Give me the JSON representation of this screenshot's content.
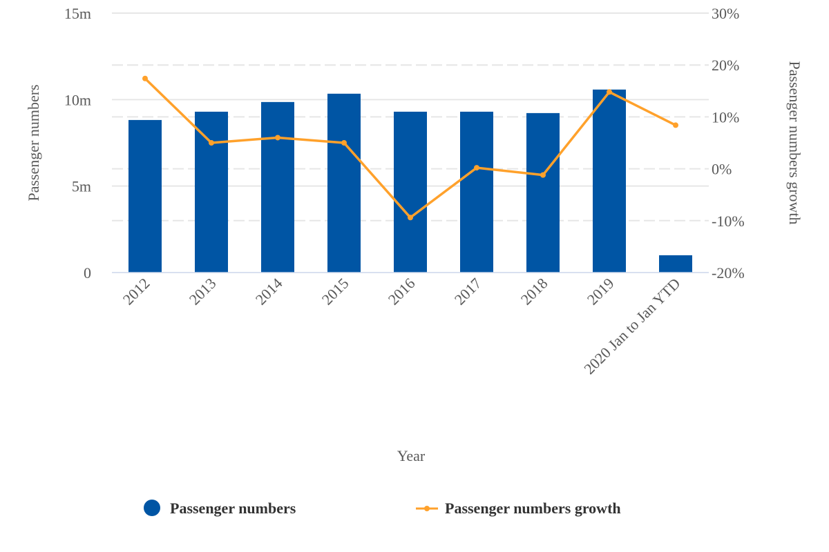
{
  "chart_data": {
    "type": "bar+line",
    "xlabel": "Year",
    "ylabel": "Passenger numbers",
    "y2label": "Passenger numbers growth",
    "categories": [
      "2012",
      "2013",
      "2014",
      "2015",
      "2016",
      "2017",
      "2018",
      "2019",
      "2020 Jan to Jan YTD"
    ],
    "ylim": [
      0,
      15000000
    ],
    "y_ticks": [
      0,
      5000000,
      10000000,
      15000000
    ],
    "y_tick_labels": [
      "0",
      "5m",
      "10m",
      "15m"
    ],
    "y2lim": [
      -20,
      30
    ],
    "y2_ticks": [
      -20,
      -10,
      0,
      10,
      20,
      30
    ],
    "y2_tick_labels": [
      "-20%",
      "-10%",
      "0%",
      "10%",
      "20%",
      "30%"
    ],
    "grid": true,
    "legend_position": "bottom",
    "series": [
      {
        "name": "Passenger numbers",
        "type": "bar",
        "axis": "left",
        "color": "#0055A4",
        "values": [
          8820000,
          9300000,
          9860000,
          10340000,
          9300000,
          9300000,
          9220000,
          10580000,
          1000000
        ]
      },
      {
        "name": "Passenger numbers growth",
        "type": "line",
        "axis": "right",
        "unit": "%",
        "color": "#FFA12B",
        "values": [
          17.4,
          5.0,
          6.0,
          5.0,
          -9.4,
          0.2,
          -1.2,
          14.8,
          8.4
        ]
      }
    ]
  }
}
